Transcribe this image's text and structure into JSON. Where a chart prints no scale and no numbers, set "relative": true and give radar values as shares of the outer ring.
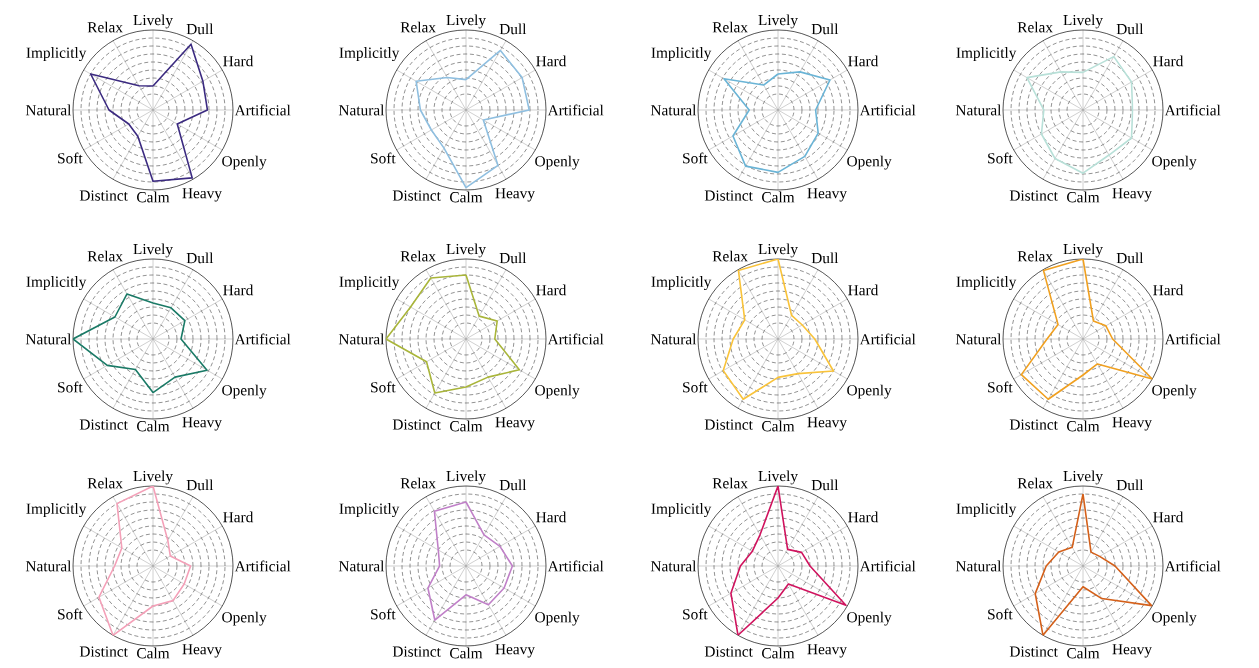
{
  "chart_data": [
    {
      "type": "radar",
      "relative": true,
      "grid": true,
      "categories": [
        "Lively",
        "Dull",
        "Hard",
        "Artificial",
        "Openly",
        "Heavy",
        "Calm",
        "Distinct",
        "Soft",
        "Natural",
        "Implicitly",
        "Relax"
      ],
      "series": [
        {
          "color": "#3b2a80",
          "values": [
            0.3,
            0.95,
            0.72,
            0.68,
            0.35,
            0.98,
            0.89,
            0.38,
            0.35,
            0.55,
            0.9,
            0.35
          ]
        }
      ]
    },
    {
      "type": "radar",
      "relative": true,
      "grid": true,
      "categories": [
        "Lively",
        "Dull",
        "Hard",
        "Artificial",
        "Openly",
        "Heavy",
        "Calm",
        "Distinct",
        "Soft",
        "Natural",
        "Implicitly",
        "Relax"
      ],
      "series": [
        {
          "color": "#8fbfe0",
          "values": [
            0.38,
            0.86,
            0.81,
            0.79,
            0.25,
            0.8,
            0.97,
            0.55,
            0.5,
            0.57,
            0.72,
            0.47
          ]
        }
      ]
    },
    {
      "type": "radar",
      "relative": true,
      "grid": true,
      "categories": [
        "Lively",
        "Dull",
        "Hard",
        "Artificial",
        "Openly",
        "Heavy",
        "Calm",
        "Distinct",
        "Soft",
        "Natural",
        "Implicitly",
        "Relax"
      ],
      "series": [
        {
          "color": "#6ab4d6",
          "values": [
            0.45,
            0.55,
            0.75,
            0.47,
            0.58,
            0.67,
            0.78,
            0.81,
            0.65,
            0.36,
            0.78,
            0.36
          ]
        }
      ]
    },
    {
      "type": "radar",
      "relative": true,
      "grid": true,
      "categories": [
        "Lively",
        "Dull",
        "Hard",
        "Artificial",
        "Openly",
        "Heavy",
        "Calm",
        "Distinct",
        "Soft",
        "Natural",
        "Implicitly",
        "Relax"
      ],
      "series": [
        {
          "color": "#b8e0d8",
          "values": [
            0.47,
            0.77,
            0.7,
            0.62,
            0.7,
            0.65,
            0.79,
            0.7,
            0.6,
            0.49,
            0.81,
            0.55
          ]
        }
      ]
    },
    {
      "type": "radar",
      "relative": true,
      "grid": true,
      "categories": [
        "Lively",
        "Dull",
        "Hard",
        "Artificial",
        "Openly",
        "Heavy",
        "Calm",
        "Distinct",
        "Soft",
        "Natural",
        "Implicitly",
        "Relax"
      ],
      "series": [
        {
          "color": "#1a7a66",
          "values": [
            0.45,
            0.45,
            0.46,
            0.35,
            0.78,
            0.55,
            0.67,
            0.44,
            0.66,
            1.0,
            0.55,
            0.65
          ]
        }
      ]
    },
    {
      "type": "radar",
      "relative": true,
      "grid": true,
      "categories": [
        "Lively",
        "Dull",
        "Hard",
        "Artificial",
        "Openly",
        "Heavy",
        "Calm",
        "Distinct",
        "Soft",
        "Natural",
        "Implicitly",
        "Relax"
      ],
      "series": [
        {
          "color": "#a9b53a",
          "values": [
            0.8,
            0.33,
            0.45,
            0.36,
            0.77,
            0.55,
            0.6,
            0.78,
            0.57,
            1.0,
            0.8,
            0.88
          ]
        }
      ]
    },
    {
      "type": "radar",
      "relative": true,
      "grid": true,
      "categories": [
        "Lively",
        "Dull",
        "Hard",
        "Artificial",
        "Openly",
        "Heavy",
        "Calm",
        "Distinct",
        "Soft",
        "Natural",
        "Implicitly",
        "Relax"
      ],
      "series": [
        {
          "color": "#f9c33a",
          "values": [
            1.0,
            0.34,
            0.35,
            0.46,
            0.8,
            0.5,
            0.48,
            0.87,
            0.79,
            0.56,
            0.48,
            0.99
          ]
        }
      ]
    },
    {
      "type": "radar",
      "relative": true,
      "grid": true,
      "categories": [
        "Lively",
        "Dull",
        "Hard",
        "Artificial",
        "Openly",
        "Heavy",
        "Calm",
        "Distinct",
        "Soft",
        "Natural",
        "Implicitly",
        "Relax"
      ],
      "series": [
        {
          "color": "#f0a020",
          "values": [
            1.0,
            0.26,
            0.33,
            0.37,
            1.0,
            0.36,
            0.45,
            0.87,
            0.89,
            0.45,
            0.36,
            0.99
          ]
        }
      ]
    },
    {
      "type": "radar",
      "relative": true,
      "grid": true,
      "categories": [
        "Lively",
        "Dull",
        "Hard",
        "Artificial",
        "Openly",
        "Heavy",
        "Calm",
        "Distinct",
        "Soft",
        "Natural",
        "Implicitly",
        "Relax"
      ],
      "series": [
        {
          "color": "#f4a0b8",
          "values": [
            1.0,
            0.37,
            0.25,
            0.47,
            0.45,
            0.5,
            0.5,
            1.0,
            0.78,
            0.48,
            0.45,
            0.9
          ]
        }
      ]
    },
    {
      "type": "radar",
      "relative": true,
      "grid": true,
      "categories": [
        "Lively",
        "Dull",
        "Hard",
        "Artificial",
        "Openly",
        "Heavy",
        "Calm",
        "Distinct",
        "Soft",
        "Natural",
        "Implicitly",
        "Relax"
      ],
      "series": [
        {
          "color": "#c080c8",
          "values": [
            0.8,
            0.45,
            0.49,
            0.58,
            0.55,
            0.56,
            0.36,
            0.78,
            0.55,
            0.33,
            0.4,
            0.79
          ]
        }
      ]
    },
    {
      "type": "radar",
      "relative": true,
      "grid": true,
      "categories": [
        "Lively",
        "Dull",
        "Hard",
        "Artificial",
        "Openly",
        "Heavy",
        "Calm",
        "Distinct",
        "Soft",
        "Natural",
        "Implicitly",
        "Relax"
      ],
      "series": [
        {
          "color": "#d0135e",
          "values": [
            1.0,
            0.24,
            0.34,
            0.4,
            0.98,
            0.26,
            0.4,
            1.0,
            0.68,
            0.47,
            0.37,
            0.45
          ]
        }
      ]
    },
    {
      "type": "radar",
      "relative": true,
      "grid": true,
      "categories": [
        "Lively",
        "Dull",
        "Hard",
        "Artificial",
        "Openly",
        "Heavy",
        "Calm",
        "Distinct",
        "Soft",
        "Natural",
        "Implicitly",
        "Relax"
      ],
      "series": [
        {
          "color": "#d4601a",
          "values": [
            0.9,
            0.2,
            0.24,
            0.4,
            0.99,
            0.47,
            0.26,
            1.0,
            0.69,
            0.46,
            0.35,
            0.27
          ]
        }
      ]
    }
  ]
}
